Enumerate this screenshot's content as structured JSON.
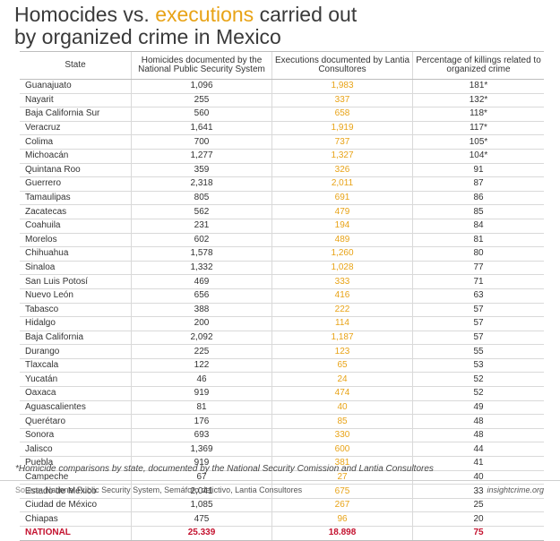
{
  "title": {
    "part1": "Homocides vs. ",
    "highlight": "executions",
    "part2": " carried out",
    "line2": "by organized crime in Mexico",
    "highlight_color": "#e8a317"
  },
  "table": {
    "headers": [
      "State",
      "Homicides documented by the National Public Security System",
      "Executions documented by Lantia Consultores",
      "Percentage of killings related to organized crime"
    ],
    "rows": [
      [
        "Guanajuato",
        "1,096",
        "1,983",
        "181*"
      ],
      [
        "Nayarit",
        "255",
        "337",
        "132*"
      ],
      [
        "Baja California Sur",
        "560",
        "658",
        "118*"
      ],
      [
        "Veracruz",
        "1,641",
        "1,919",
        "117*"
      ],
      [
        "Colima",
        "700",
        "737",
        "105*"
      ],
      [
        "Michoacán",
        "1,277",
        "1,327",
        "104*"
      ],
      [
        "Quintana Roo",
        "359",
        "326",
        "91"
      ],
      [
        "Guerrero",
        "2,318",
        "2,011",
        "87"
      ],
      [
        "Tamaulipas",
        "805",
        "691",
        "86"
      ],
      [
        "Zacatecas",
        "562",
        "479",
        "85"
      ],
      [
        "Coahuila",
        "231",
        "194",
        "84"
      ],
      [
        "Morelos",
        "602",
        "489",
        "81"
      ],
      [
        "Chihuahua",
        "1,578",
        "1,260",
        "80"
      ],
      [
        "Sinaloa",
        "1,332",
        "1,028",
        "77"
      ],
      [
        "San Luis Potosí",
        "469",
        "333",
        "71"
      ],
      [
        "Nuevo León",
        "656",
        "416",
        "63"
      ],
      [
        "Tabasco",
        "388",
        "222",
        "57"
      ],
      [
        "Hidalgo",
        "200",
        "114",
        "57"
      ],
      [
        "Baja California",
        "2,092",
        "1,187",
        "57"
      ],
      [
        "Durango",
        "225",
        "123",
        "55"
      ],
      [
        "Tlaxcala",
        "122",
        "65",
        "53"
      ],
      [
        "Yucatán",
        "46",
        "24",
        "52"
      ],
      [
        "Oaxaca",
        "919",
        "474",
        "52"
      ],
      [
        "Aguascalientes",
        "81",
        "40",
        "49"
      ],
      [
        "Querétaro",
        "176",
        "85",
        "48"
      ],
      [
        "Sonora",
        "693",
        "330",
        "48"
      ],
      [
        "Jalisco",
        "1,369",
        "600",
        "44"
      ],
      [
        "Puebla",
        "919",
        "381",
        "41"
      ],
      [
        "Campeche",
        "67",
        "27",
        "40"
      ],
      [
        "Estado de México",
        "2,041",
        "675",
        "33"
      ],
      [
        "Ciudad de México",
        "1,085",
        "267",
        "25"
      ],
      [
        "Chiapas",
        "475",
        "96",
        "20"
      ]
    ],
    "total": [
      "NATIONAL",
      "25.339",
      "18.898",
      "75"
    ]
  },
  "footnote": "*Homicide comparisons by state, documented by the National Security Comission and Lantia Consultores",
  "source": {
    "label": "Source:",
    "text": "National Public Security System, Semáforo delictivo, Lantia Consultores",
    "site": "insightcrime.org"
  },
  "colors": {
    "executions": "#e8a317",
    "national": "#c4122f"
  }
}
